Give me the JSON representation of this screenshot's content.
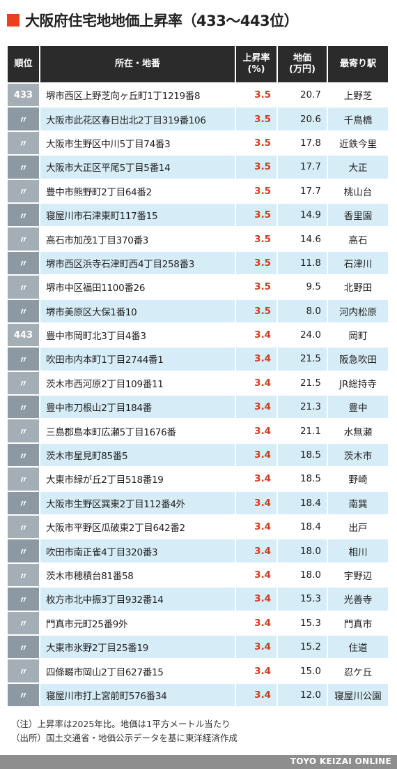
{
  "title": "大阪府住宅地地価上昇率（433〜443位）",
  "headers": {
    "rank": "順位",
    "address": "所在・地番",
    "rate_line1": "上昇率",
    "rate_line2": "(%)",
    "price_line1": "地価",
    "price_line2": "(万円)",
    "station": "最寄り駅"
  },
  "rows": [
    {
      "rank": "433",
      "address": "堺市西区上野芝向ヶ丘町1丁1219番8",
      "rate": "3.5",
      "price": "20.7",
      "station": "上野芝"
    },
    {
      "rank": "〃",
      "address": "大阪市此花区春日出北2丁目319番106",
      "rate": "3.5",
      "price": "20.6",
      "station": "千鳥橋"
    },
    {
      "rank": "〃",
      "address": "大阪市生野区中川5丁目74番3",
      "rate": "3.5",
      "price": "17.8",
      "station": "近鉄今里"
    },
    {
      "rank": "〃",
      "address": "大阪市大正区平尾5丁目5番14",
      "rate": "3.5",
      "price": "17.7",
      "station": "大正"
    },
    {
      "rank": "〃",
      "address": "豊中市熊野町2丁目64番2",
      "rate": "3.5",
      "price": "17.7",
      "station": "桃山台"
    },
    {
      "rank": "〃",
      "address": "寝屋川市石津東町117番15",
      "rate": "3.5",
      "price": "14.9",
      "station": "香里園"
    },
    {
      "rank": "〃",
      "address": "高石市加茂1丁目370番3",
      "rate": "3.5",
      "price": "14.6",
      "station": "高石"
    },
    {
      "rank": "〃",
      "address": "堺市西区浜寺石津町西4丁目258番3",
      "rate": "3.5",
      "price": "11.8",
      "station": "石津川"
    },
    {
      "rank": "〃",
      "address": "堺市中区福田1100番26",
      "rate": "3.5",
      "price": "9.5",
      "station": "北野田"
    },
    {
      "rank": "〃",
      "address": "堺市美原区大保1番10",
      "rate": "3.5",
      "price": "8.0",
      "station": "河内松原"
    },
    {
      "rank": "443",
      "address": "豊中市岡町北3丁目4番3",
      "rate": "3.4",
      "price": "24.0",
      "station": "岡町"
    },
    {
      "rank": "〃",
      "address": "吹田市内本町1丁目2744番1",
      "rate": "3.4",
      "price": "21.5",
      "station": "阪急吹田"
    },
    {
      "rank": "〃",
      "address": "茨木市西河原2丁目109番11",
      "rate": "3.4",
      "price": "21.5",
      "station": "JR総持寺"
    },
    {
      "rank": "〃",
      "address": "豊中市刀根山2丁目184番",
      "rate": "3.4",
      "price": "21.3",
      "station": "豊中"
    },
    {
      "rank": "〃",
      "address": "三島郡島本町広瀬5丁目1676番",
      "rate": "3.4",
      "price": "21.1",
      "station": "水無瀬"
    },
    {
      "rank": "〃",
      "address": "茨木市星見町85番5",
      "rate": "3.4",
      "price": "18.5",
      "station": "茨木市"
    },
    {
      "rank": "〃",
      "address": "大東市緑が丘2丁目518番19",
      "rate": "3.4",
      "price": "18.5",
      "station": "野崎"
    },
    {
      "rank": "〃",
      "address": "大阪市生野区巽東2丁目112番4外",
      "rate": "3.4",
      "price": "18.4",
      "station": "南巽"
    },
    {
      "rank": "〃",
      "address": "大阪市平野区瓜破東2丁目642番2",
      "rate": "3.4",
      "price": "18.4",
      "station": "出戸"
    },
    {
      "rank": "〃",
      "address": "吹田市南正雀4丁目320番3",
      "rate": "3.4",
      "price": "18.0",
      "station": "相川"
    },
    {
      "rank": "〃",
      "address": "茨木市穂積台81番58",
      "rate": "3.4",
      "price": "18.0",
      "station": "宇野辺"
    },
    {
      "rank": "〃",
      "address": "枚方市北中振3丁目932番14",
      "rate": "3.4",
      "price": "15.3",
      "station": "光善寺"
    },
    {
      "rank": "〃",
      "address": "門真市元町25番9外",
      "rate": "3.4",
      "price": "15.3",
      "station": "門真市"
    },
    {
      "rank": "〃",
      "address": "大東市氷野2丁目25番19",
      "rate": "3.4",
      "price": "15.2",
      "station": "住道"
    },
    {
      "rank": "〃",
      "address": "四條畷市岡山2丁目627番15",
      "rate": "3.4",
      "price": "15.0",
      "station": "忍ケ丘"
    },
    {
      "rank": "〃",
      "address": "寝屋川市打上宮前町576番34",
      "rate": "3.4",
      "price": "12.0",
      "station": "寝屋川公園"
    }
  ],
  "notes": {
    "note": "（注）上昇率は2025年比。地価は1平方メートル当たり",
    "source": "（出所）国土交通省・地価公示データを基に東洋経済作成"
  },
  "footer": {
    "brand": "TOYO KEIZAI ONLINE"
  },
  "colors": {
    "accent": "#e8411f",
    "header_bg": "#2b2b2b",
    "row_alt": "#d6ecf7",
    "rate_text": "#d23a1f",
    "rank_bg": "#a3aeb6"
  }
}
